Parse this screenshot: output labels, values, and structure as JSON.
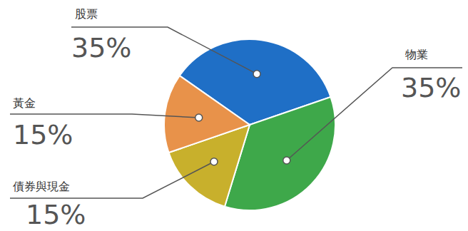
{
  "chart_data": {
    "type": "pie",
    "categories": [
      "股票",
      "物業",
      "債券與現金",
      "黃金"
    ],
    "values": [
      35,
      35,
      15,
      15
    ],
    "value_labels": [
      "35%",
      "35%",
      "15%",
      "15%"
    ],
    "colors": [
      "#1f6fc6",
      "#3ea84a",
      "#c8b02c",
      "#e8924a"
    ],
    "data_labels": true
  }
}
